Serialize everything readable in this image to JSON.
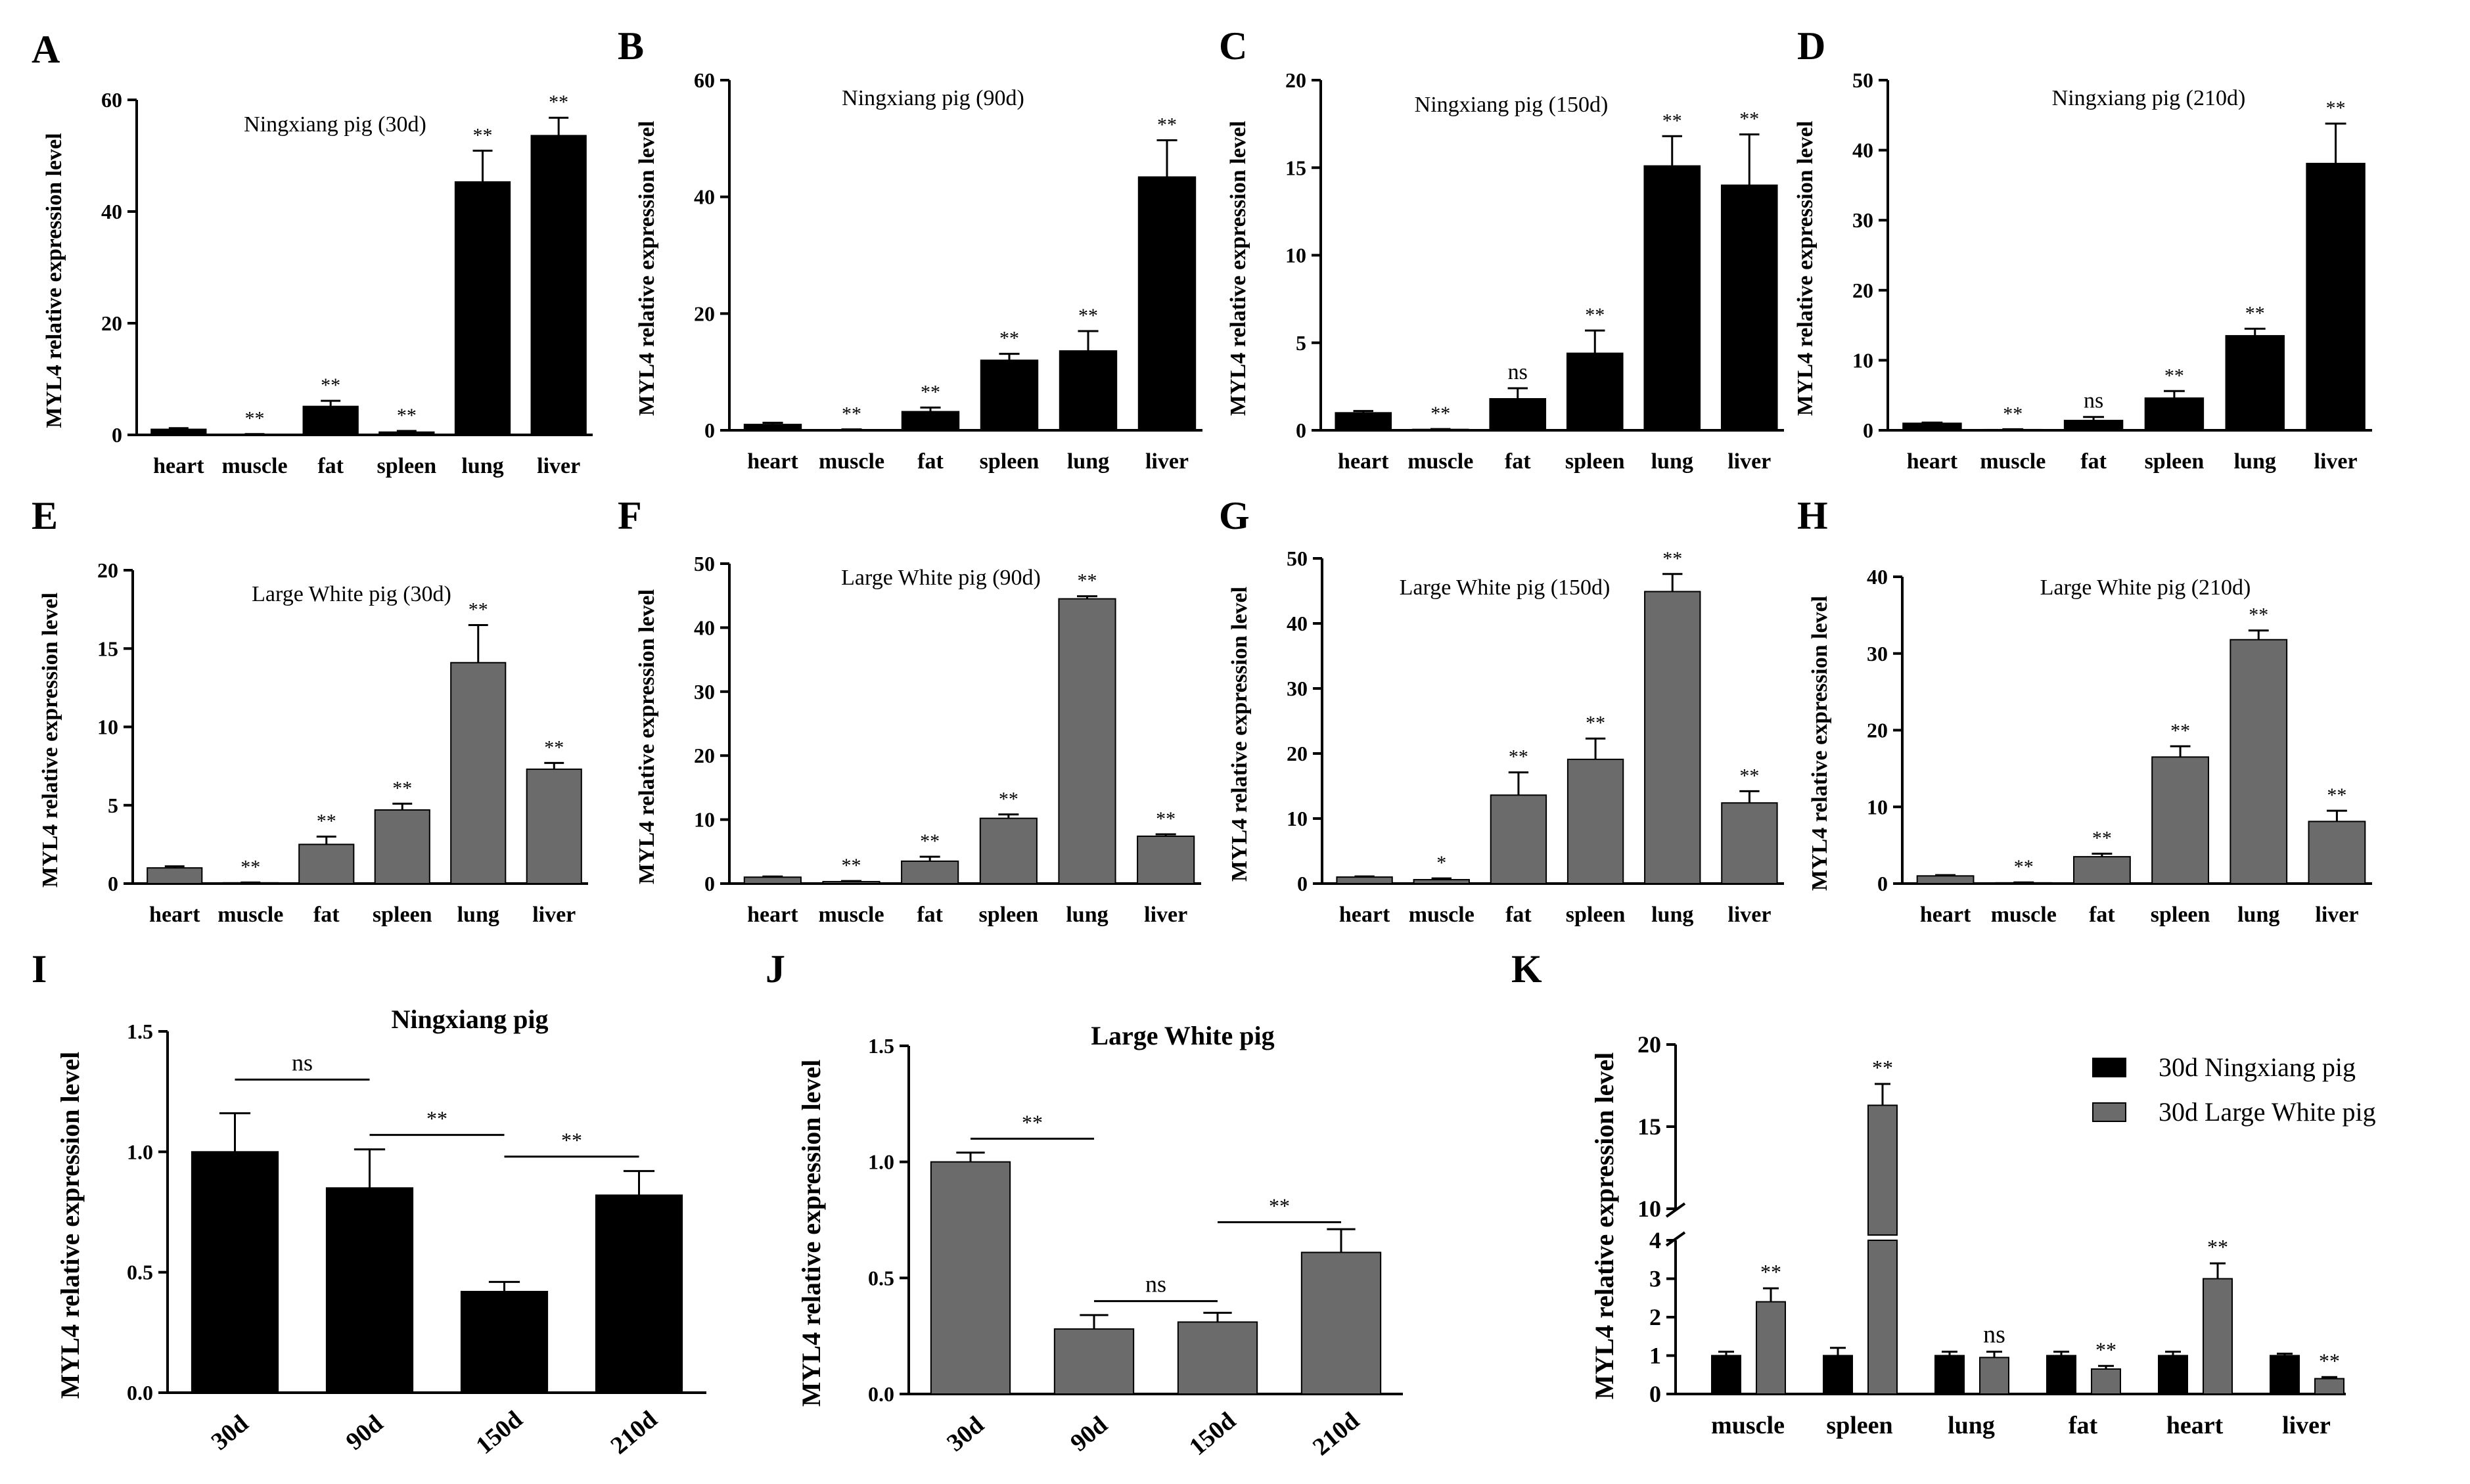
{
  "colors": {
    "black": "#000000",
    "gray": "#6b6b6b",
    "bg": "#ffffff"
  },
  "chart_data": [
    {
      "panel": "A",
      "type": "bar",
      "title": "Ningxiang pig (30d)",
      "ylabel": "MYL4 relative expression level",
      "categories": [
        "heart",
        "muscle",
        "fat",
        "spleen",
        "lung",
        "liver"
      ],
      "values": [
        1.0,
        0.1,
        5.1,
        0.5,
        45.3,
        53.6
      ],
      "errors": [
        0.2,
        0.05,
        1.0,
        0.2,
        5.6,
        3.2
      ],
      "sig": [
        "",
        "**",
        "**",
        "**",
        "**",
        "**"
      ],
      "ylim": [
        0,
        60
      ],
      "yticks": [
        0,
        20,
        40,
        60
      ],
      "color": "black"
    },
    {
      "panel": "B",
      "type": "bar",
      "title": "Ningxiang pig (90d)",
      "ylabel": "MYL4 relative expression level",
      "categories": [
        "heart",
        "muscle",
        "fat",
        "spleen",
        "lung",
        "liver"
      ],
      "values": [
        1.0,
        0.1,
        3.2,
        12.0,
        13.6,
        43.4
      ],
      "errors": [
        0.3,
        0.05,
        0.7,
        1.1,
        3.4,
        6.3
      ],
      "sig": [
        "",
        "**",
        "**",
        "**",
        "**",
        "**"
      ],
      "ylim": [
        0,
        60
      ],
      "yticks": [
        0,
        20,
        40,
        60
      ],
      "color": "black"
    },
    {
      "panel": "C",
      "type": "bar",
      "title": "Ningxiang pig (150d)",
      "ylabel": "MYL4 relative expression level",
      "categories": [
        "heart",
        "muscle",
        "fat",
        "spleen",
        "lung",
        "liver"
      ],
      "values": [
        1.0,
        0.05,
        1.8,
        4.4,
        15.1,
        14.0
      ],
      "errors": [
        0.1,
        0.02,
        0.6,
        1.3,
        1.7,
        2.9
      ],
      "sig": [
        "",
        "**",
        "ns",
        "**",
        "**",
        "**"
      ],
      "ylim": [
        0,
        20
      ],
      "yticks": [
        0,
        5,
        10,
        15,
        20
      ],
      "color": "black"
    },
    {
      "panel": "D",
      "type": "bar",
      "title": "Ningxiang pig (210d)",
      "ylabel": "MYL4 relative expression level",
      "categories": [
        "heart",
        "muscle",
        "fat",
        "spleen",
        "lung",
        "liver"
      ],
      "values": [
        1.0,
        0.1,
        1.4,
        4.6,
        13.5,
        38.1
      ],
      "errors": [
        0.1,
        0.05,
        0.5,
        1.0,
        1.0,
        5.7
      ],
      "sig": [
        "",
        "**",
        "ns",
        "**",
        "**",
        "**"
      ],
      "ylim": [
        0,
        50
      ],
      "yticks": [
        0,
        10,
        20,
        30,
        40,
        50
      ],
      "color": "black"
    },
    {
      "panel": "E",
      "type": "bar",
      "title": "Large White pig (30d)",
      "ylabel": "MYL4 relative expression level",
      "categories": [
        "heart",
        "muscle",
        "fat",
        "spleen",
        "lung",
        "liver"
      ],
      "values": [
        1.0,
        0.05,
        2.5,
        4.7,
        14.1,
        7.3
      ],
      "errors": [
        0.1,
        0.02,
        0.5,
        0.4,
        2.4,
        0.4
      ],
      "sig": [
        "",
        "**",
        "**",
        "**",
        "**",
        "**"
      ],
      "ylim": [
        0,
        20
      ],
      "yticks": [
        0,
        5,
        10,
        15,
        20
      ],
      "color": "gray"
    },
    {
      "panel": "F",
      "type": "bar",
      "title": "Large White pig (90d)",
      "ylabel": "MYL4 relative expression level",
      "categories": [
        "heart",
        "muscle",
        "fat",
        "spleen",
        "lung",
        "liver"
      ],
      "values": [
        1.0,
        0.3,
        3.5,
        10.2,
        44.5,
        7.4
      ],
      "errors": [
        0.1,
        0.1,
        0.7,
        0.6,
        0.4,
        0.3
      ],
      "sig": [
        "",
        "**",
        "**",
        "**",
        "**",
        "**"
      ],
      "ylim": [
        0,
        50
      ],
      "yticks": [
        0,
        10,
        20,
        30,
        40,
        50
      ],
      "color": "gray"
    },
    {
      "panel": "G",
      "type": "bar",
      "title": "Large White pig (150d)",
      "ylabel": "MYL4 relative expression level",
      "categories": [
        "heart",
        "muscle",
        "fat",
        "spleen",
        "lung",
        "liver"
      ],
      "values": [
        1.0,
        0.6,
        13.6,
        19.1,
        44.9,
        12.4
      ],
      "errors": [
        0.1,
        0.2,
        3.5,
        3.2,
        2.7,
        1.8
      ],
      "sig": [
        "",
        "*",
        "**",
        "**",
        "**",
        "**"
      ],
      "ylim": [
        0,
        50
      ],
      "yticks": [
        0,
        10,
        20,
        30,
        40,
        50
      ],
      "color": "gray"
    },
    {
      "panel": "H",
      "type": "bar",
      "title": "Large White pig (210d)",
      "ylabel": "MYL4 relative expression level",
      "categories": [
        "heart",
        "muscle",
        "fat",
        "spleen",
        "lung",
        "liver"
      ],
      "values": [
        1.0,
        0.1,
        3.5,
        16.5,
        31.8,
        8.1
      ],
      "errors": [
        0.1,
        0.05,
        0.4,
        1.4,
        1.2,
        1.4
      ],
      "sig": [
        "",
        "**",
        "**",
        "**",
        "**",
        "**"
      ],
      "ylim": [
        0,
        40
      ],
      "yticks": [
        0,
        10,
        20,
        30,
        40
      ],
      "color": "gray"
    },
    {
      "panel": "I",
      "type": "bar",
      "title": "Ningxiang pig",
      "ylabel": "MYL4 relative expression level",
      "categories": [
        "30d",
        "90d",
        "150d",
        "210d"
      ],
      "values": [
        1.0,
        0.85,
        0.42,
        0.82
      ],
      "errors": [
        0.16,
        0.16,
        0.04,
        0.1
      ],
      "ylim": [
        0,
        1.5
      ],
      "yticks": [
        0.0,
        0.5,
        1.0,
        1.5
      ],
      "color": "black",
      "comparisons": [
        {
          "from": 0,
          "to": 1,
          "label": "ns",
          "y": 1.3
        },
        {
          "from": 1,
          "to": 2,
          "label": "**",
          "y": 1.07
        },
        {
          "from": 2,
          "to": 3,
          "label": "**",
          "y": 0.98
        }
      ]
    },
    {
      "panel": "J",
      "type": "bar",
      "title": "Large White pig",
      "ylabel": "MYL4 relative expression level",
      "categories": [
        "30d",
        "90d",
        "150d",
        "210d"
      ],
      "values": [
        1.0,
        0.28,
        0.31,
        0.61
      ],
      "errors": [
        0.04,
        0.06,
        0.04,
        0.1
      ],
      "ylim": [
        0,
        1.5
      ],
      "yticks": [
        0.0,
        0.5,
        1.0,
        1.5
      ],
      "color": "gray",
      "comparisons": [
        {
          "from": 0,
          "to": 1,
          "label": "**",
          "y": 1.1
        },
        {
          "from": 1,
          "to": 2,
          "label": "ns",
          "y": 0.4
        },
        {
          "from": 2,
          "to": 3,
          "label": "**",
          "y": 0.74
        }
      ]
    },
    {
      "panel": "K",
      "type": "bar",
      "title": "",
      "ylabel": "MYL4 relative expression level",
      "categories": [
        "muscle",
        "spleen",
        "lung",
        "fat",
        "heart",
        "liver"
      ],
      "series": [
        {
          "name": "30d Ningxiang pig",
          "values": [
            1.0,
            1.0,
            1.0,
            1.0,
            1.0,
            1.0
          ],
          "errors": [
            0.1,
            0.2,
            0.1,
            0.1,
            0.1,
            0.05
          ],
          "color": "black"
        },
        {
          "name": "30d Large White pig",
          "values": [
            2.4,
            16.3,
            0.95,
            0.65,
            3.0,
            0.4
          ],
          "errors": [
            0.35,
            1.3,
            0.15,
            0.08,
            0.4,
            0.04
          ],
          "color": "gray"
        }
      ],
      "sig": [
        "**",
        "**",
        "ns",
        "**",
        "**",
        "**"
      ],
      "ylim": [
        0,
        20
      ],
      "broken_axis": {
        "lower": [
          0,
          4
        ],
        "upper": [
          10,
          20
        ]
      },
      "yticks_lower": [
        0,
        1,
        2,
        3,
        4
      ],
      "yticks_upper": [
        10,
        15,
        20
      ],
      "legend_position": "top-right"
    }
  ]
}
